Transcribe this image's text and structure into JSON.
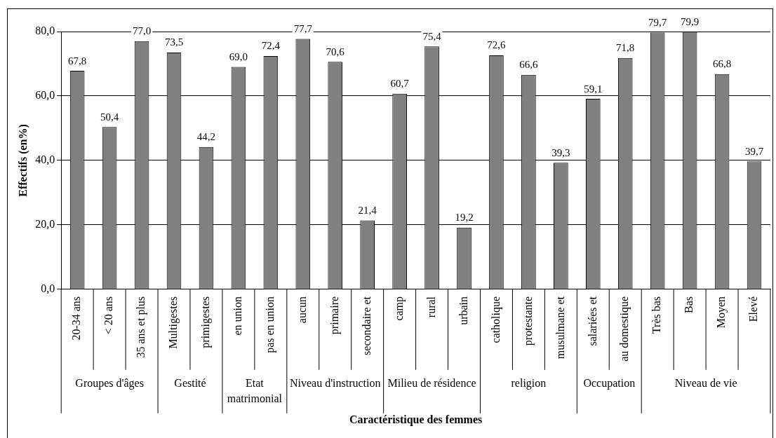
{
  "chart_data": {
    "type": "bar",
    "xlabel": "Caractéristique des femmes",
    "ylabel": "Effectifs (en%)",
    "categories": [
      "20-34 ans",
      "< 20 ans",
      "35 ans et plus",
      "Multigestes",
      "primigestes",
      "en union",
      "pas en union",
      "aucun",
      "primaire",
      "secondaire et",
      "camp",
      "rural",
      "urbain",
      "catholique",
      "protestante",
      "musulmane et",
      "salariées et",
      "au domestique",
      "Très bas",
      "Bas",
      "Moyen",
      "Elevé"
    ],
    "values": [
      67.8,
      50.4,
      77.0,
      73.5,
      44.2,
      69.0,
      72.4,
      77.7,
      70.6,
      21.4,
      60.7,
      75.4,
      19.2,
      72.6,
      66.6,
      39.3,
      59.1,
      71.8,
      79.7,
      79.9,
      66.8,
      39.7
    ],
    "value_labels": [
      "67,8",
      "50,4",
      "77,0",
      "73,5",
      "44,2",
      "69,0",
      "72,4",
      "77,7",
      "70,6",
      "21,4",
      "60,7",
      "75,4",
      "19,2",
      "72,6",
      "66,6",
      "39,3",
      "59,1",
      "71,8",
      "79,7",
      "79,9",
      "66,8",
      "39,7"
    ],
    "color": "#808080",
    "ylim": [
      0,
      80
    ],
    "yticks": [
      {
        "value": 0,
        "label": "0,0"
      },
      {
        "value": 20,
        "label": "20,0"
      },
      {
        "value": 40,
        "label": "40,0"
      },
      {
        "value": 60,
        "label": "60,0"
      },
      {
        "value": 80,
        "label": "80,0"
      }
    ],
    "grid": "y",
    "annotations": [
      "Groupes d'âges",
      "Gestité",
      "Etat matrimonial",
      "Niveau d'instruction",
      "Milieu de résidence",
      "religion",
      "Occupation",
      "Niveau de vie"
    ]
  }
}
